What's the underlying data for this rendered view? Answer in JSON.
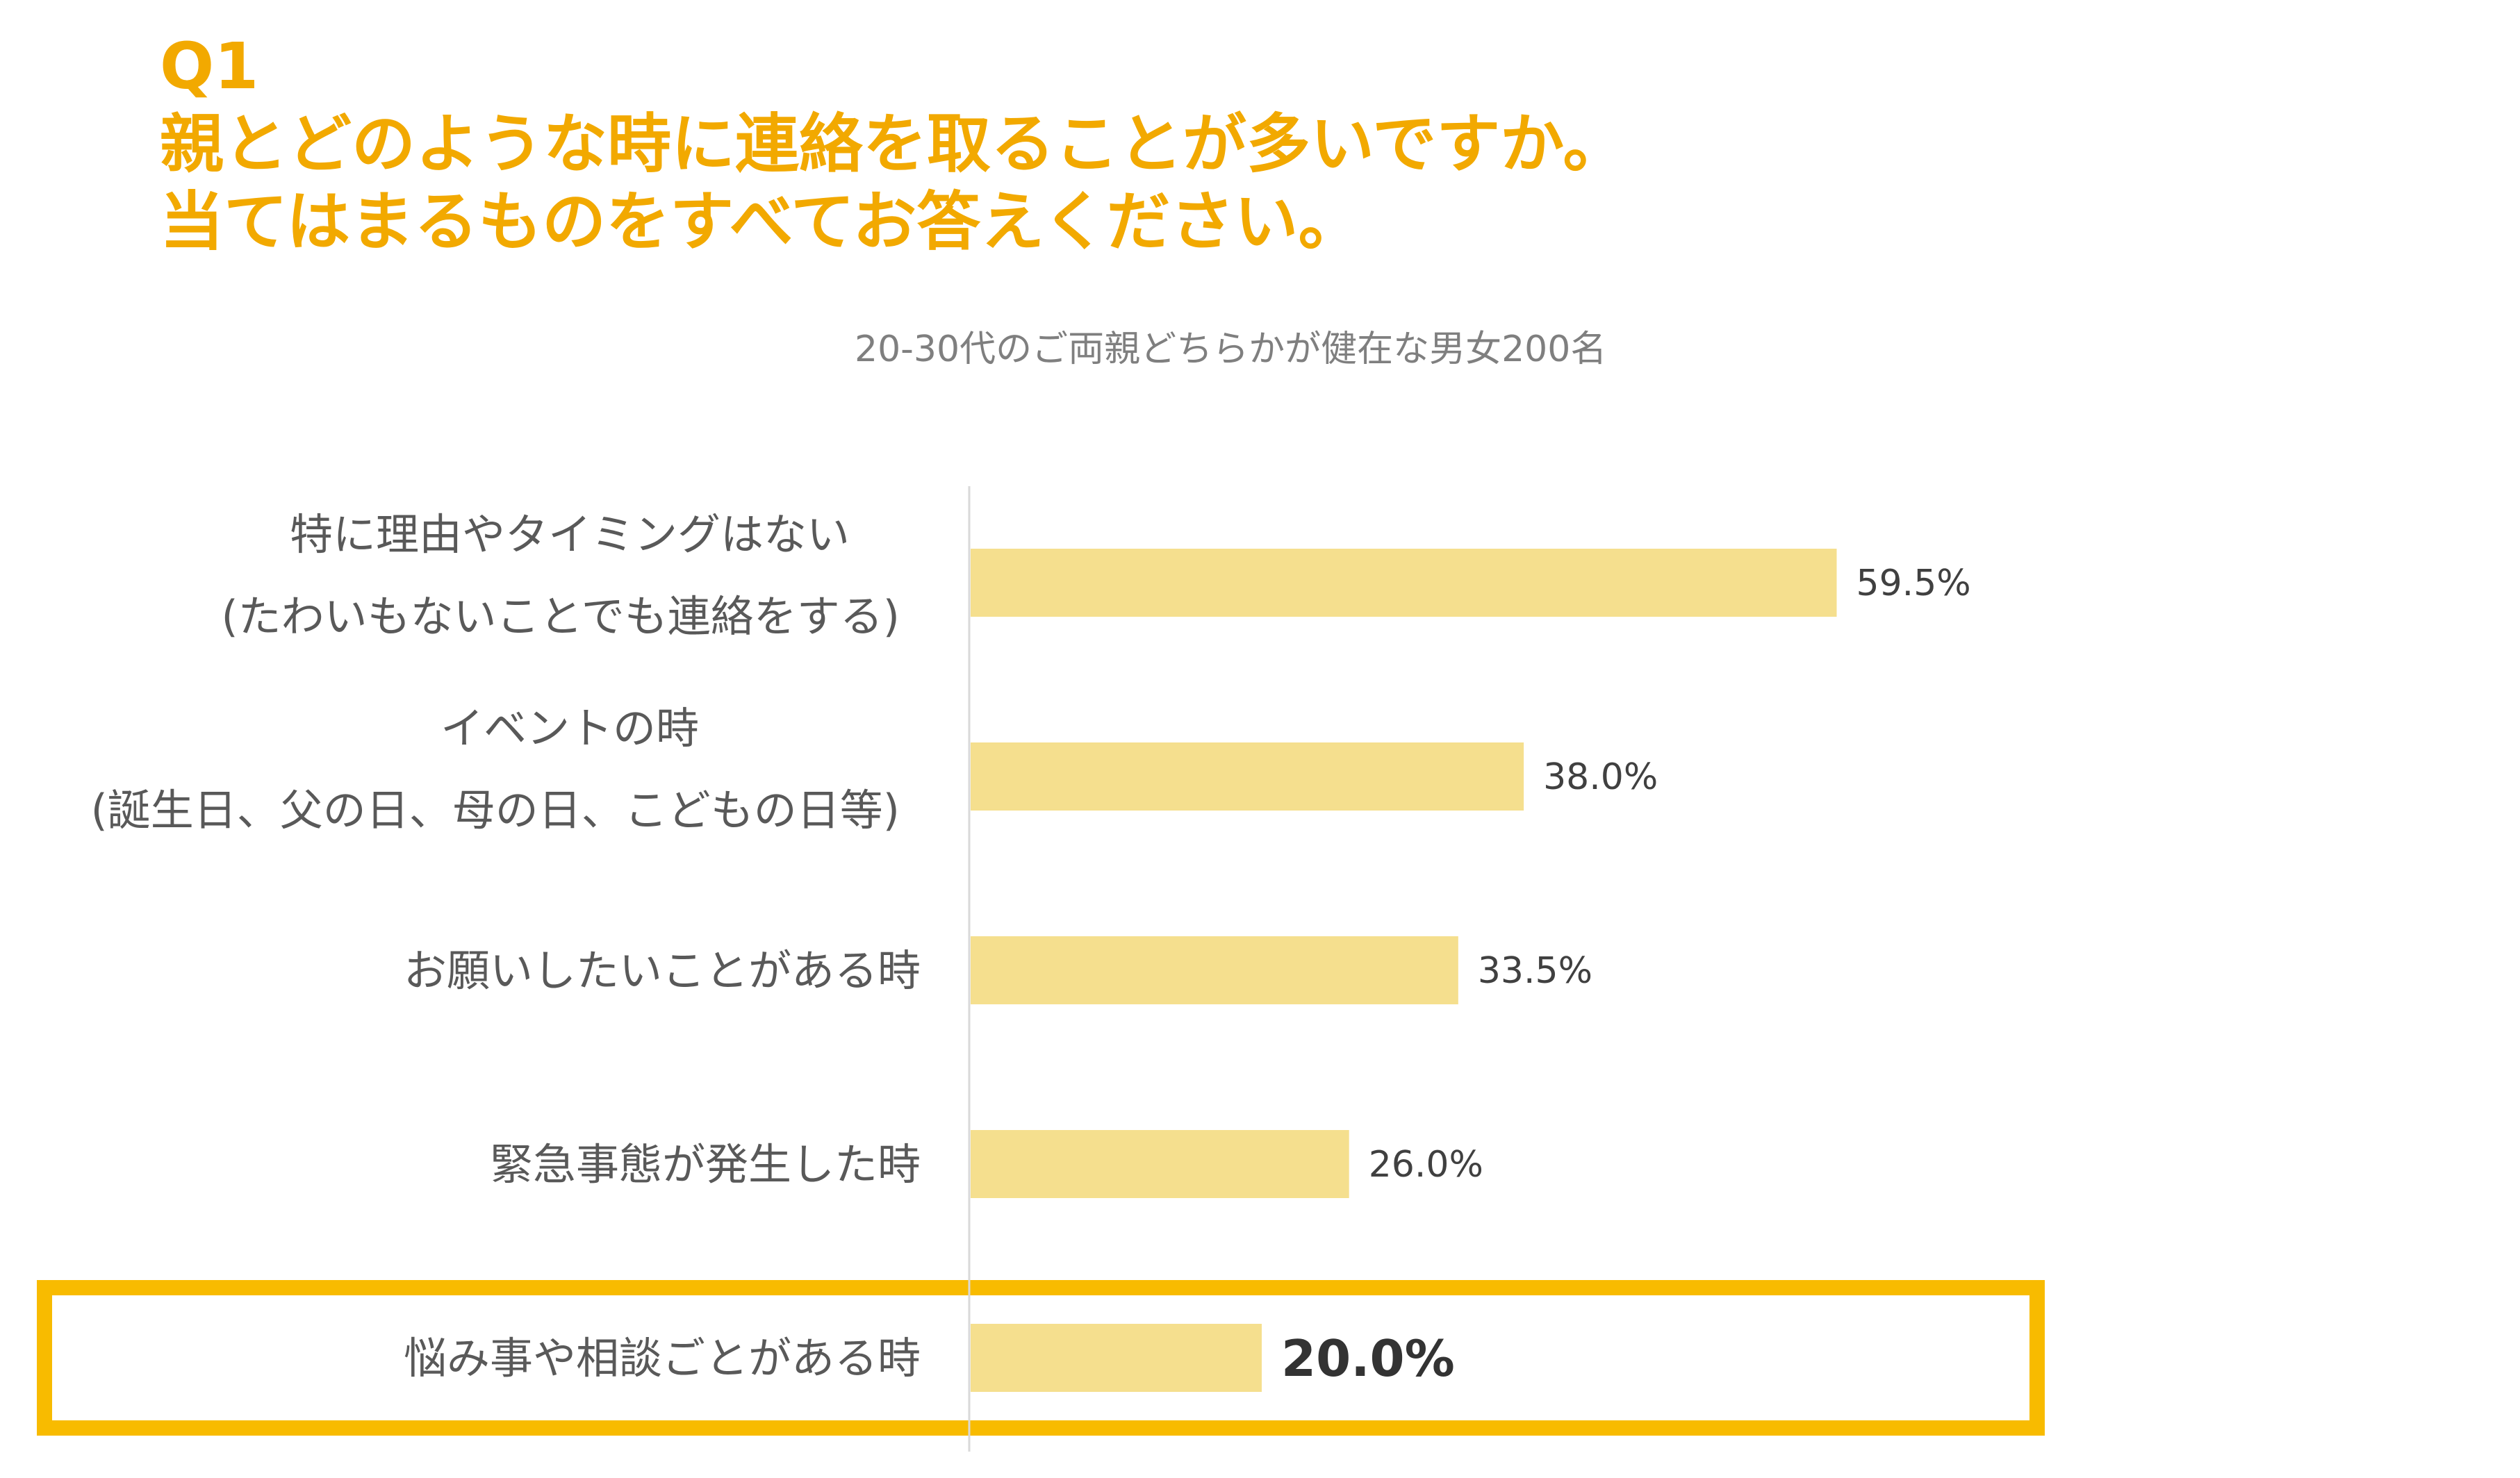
{
  "header": {
    "q_number": "Q1",
    "question_line1": "親とどのような時に連絡を取ることが多いですか。",
    "question_line2": "当てはまるものをすべてお答えください。",
    "sample": "20-30代のご両親どちらかが健在な男女200名"
  },
  "colors": {
    "title": "#f2a900",
    "bar": "#f5df8e",
    "highlight_box": "#f8bb00",
    "axis": "#d9d9d9"
  },
  "chart_data": {
    "type": "bar",
    "orientation": "horizontal",
    "categories": [
      [
        "特に理由やタイミングはない",
        "(たわいもないことでも連絡をする)"
      ],
      [
        "イベントの時",
        "(誕生日、父の日、母の日、こどもの日等)"
      ],
      [
        "お願いしたいことがある時"
      ],
      [
        "緊急事態が発生した時"
      ],
      [
        "悩み事や相談ごとがある時"
      ]
    ],
    "values": [
      59.5,
      38.0,
      33.5,
      26.0,
      20.0
    ],
    "value_labels": [
      "59.5%",
      "38.0%",
      "33.5%",
      "26.0%",
      "20.0%"
    ],
    "unit": "%",
    "xlim": [
      0,
      100
    ],
    "highlight_index": 4,
    "grid": false,
    "legend": false
  }
}
